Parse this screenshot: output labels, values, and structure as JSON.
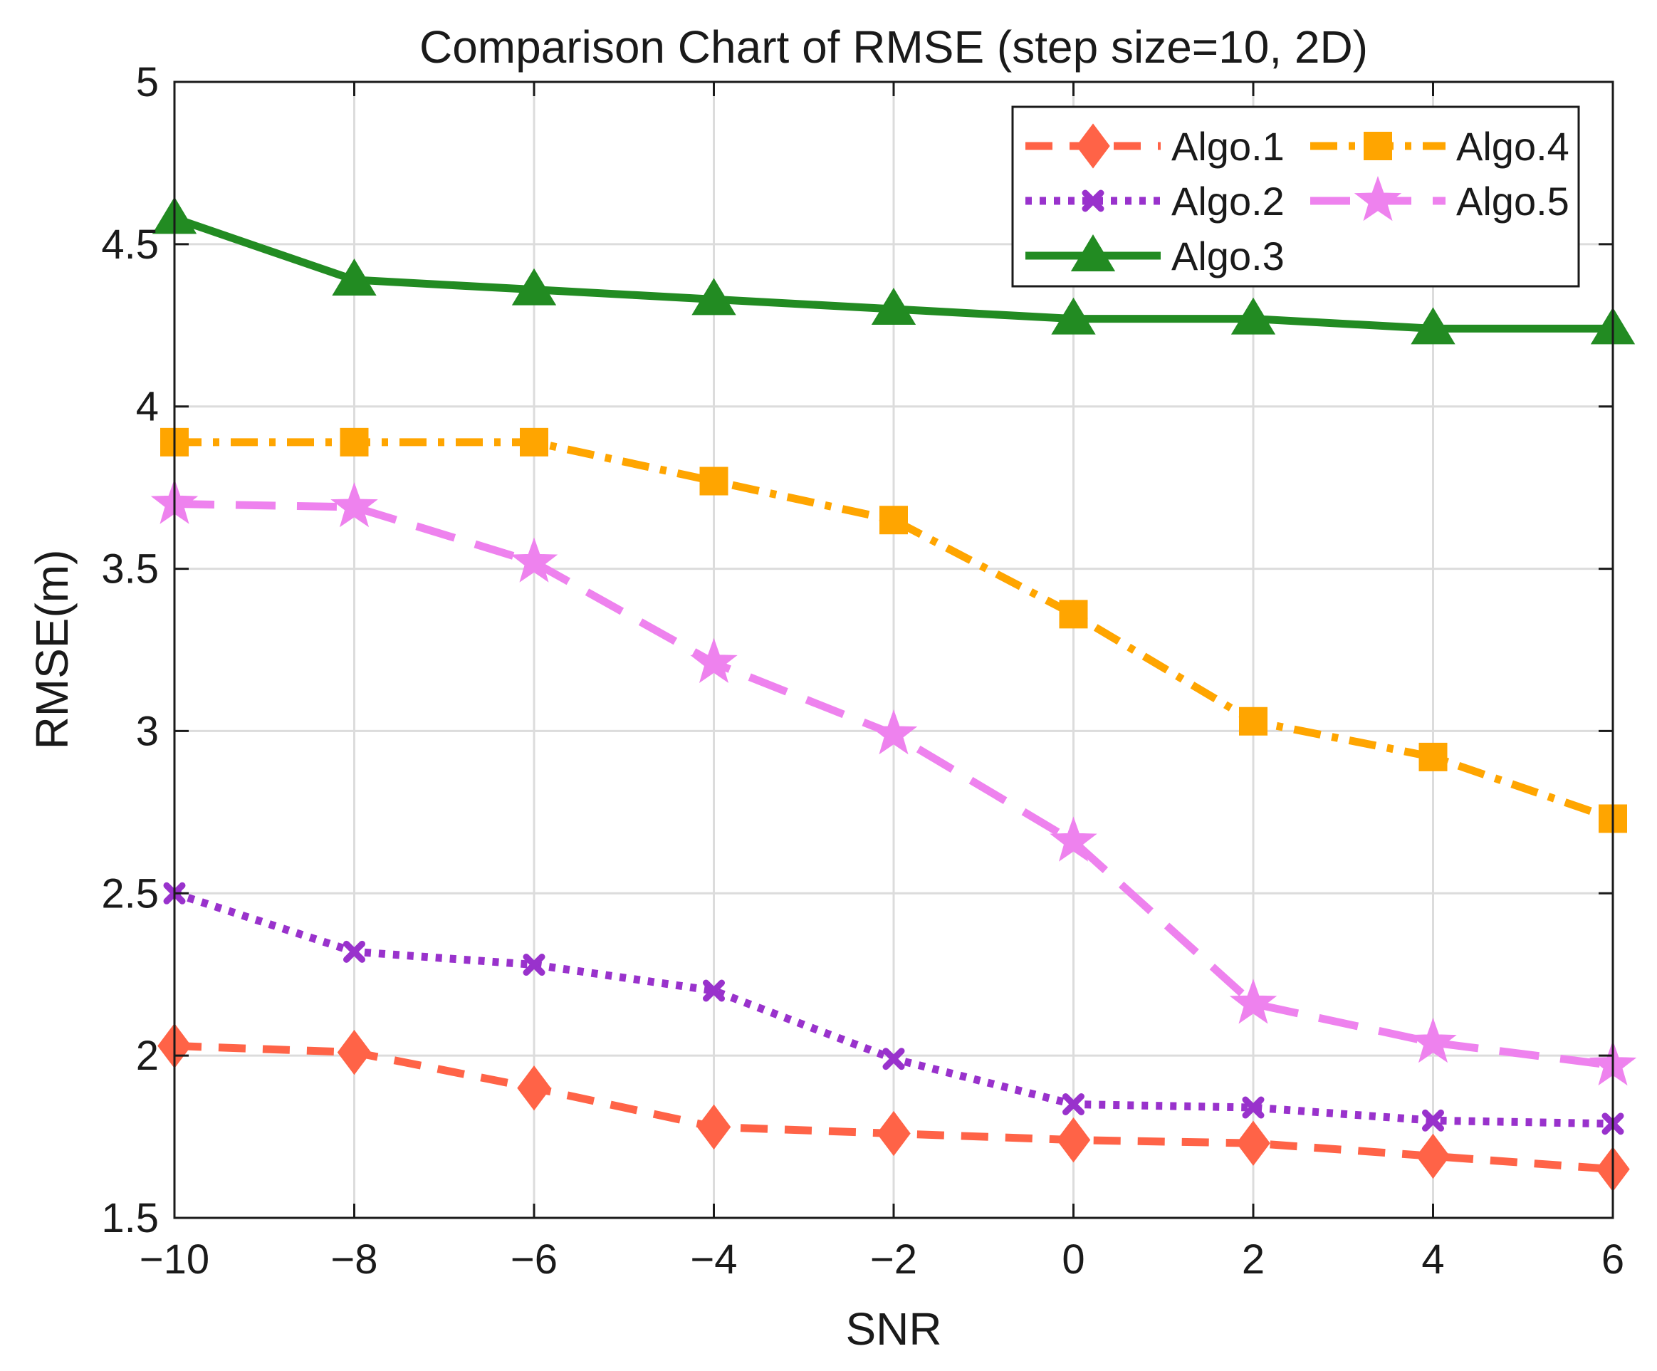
{
  "chart_data": {
    "type": "line",
    "title": "Comparison Chart of RMSE (step size=10, 2D)",
    "xlabel": "SNR",
    "ylabel": "RMSE(m)",
    "xlim": [
      -10,
      6
    ],
    "ylim": [
      1.5,
      5
    ],
    "x_ticks": [
      -10,
      -8,
      -6,
      -4,
      -2,
      0,
      2,
      4,
      6
    ],
    "x_tick_labels": [
      "−10",
      "−8",
      "−6",
      "−4",
      "−2",
      "0",
      "2",
      "4",
      "6"
    ],
    "y_ticks": [
      1.5,
      2,
      2.5,
      3,
      3.5,
      4,
      4.5,
      5
    ],
    "y_tick_labels": [
      "1.5",
      "2",
      "2.5",
      "3",
      "3.5",
      "4",
      "4.5",
      "5"
    ],
    "grid": true,
    "legend_position": "top-right",
    "x": [
      -10,
      -8,
      -6,
      -4,
      -2,
      0,
      2,
      4,
      6
    ],
    "series": [
      {
        "name": "Algo.1",
        "color": "#ff6347",
        "dash": "dashed",
        "marker": "diamond",
        "values": [
          2.03,
          2.01,
          1.9,
          1.78,
          1.76,
          1.74,
          1.73,
          1.69,
          1.65
        ]
      },
      {
        "name": "Algo.2",
        "color": "#9932cc",
        "dash": "dotted",
        "marker": "x",
        "values": [
          2.5,
          2.32,
          2.28,
          2.2,
          1.99,
          1.85,
          1.84,
          1.8,
          1.79
        ]
      },
      {
        "name": "Algo.3",
        "color": "#228b22",
        "dash": "solid",
        "marker": "triangle",
        "values": [
          4.58,
          4.39,
          4.36,
          4.33,
          4.3,
          4.27,
          4.27,
          4.24,
          4.24
        ]
      },
      {
        "name": "Algo.4",
        "color": "#ffa500",
        "dash": "dashdot",
        "marker": "square",
        "values": [
          3.89,
          3.89,
          3.89,
          3.77,
          3.65,
          3.36,
          3.03,
          2.92,
          2.73
        ]
      },
      {
        "name": "Algo.5",
        "color": "#ee82ee",
        "dash": "longdash",
        "marker": "star",
        "values": [
          3.7,
          3.69,
          3.52,
          3.21,
          2.99,
          2.66,
          2.16,
          2.04,
          1.97
        ]
      }
    ]
  }
}
